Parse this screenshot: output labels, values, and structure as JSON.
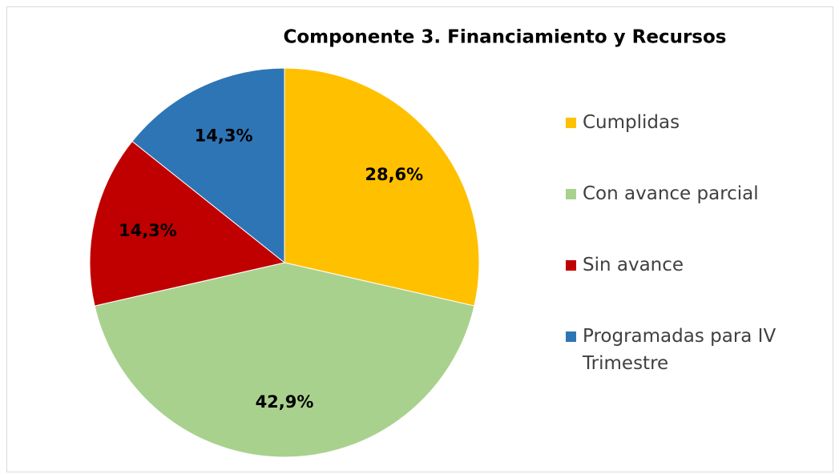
{
  "chart_data": {
    "type": "pie",
    "title": "Componente 3. Financiamiento y Recursos",
    "categories": [
      "Cumplidas",
      "Con avance parcial",
      "Sin avance",
      "Programadas para IV Trimestre"
    ],
    "values": [
      28.6,
      42.9,
      14.3,
      14.3
    ],
    "value_labels": [
      "28,6%",
      "42,9%",
      "14,3%",
      "14,3%"
    ],
    "colors": [
      "#ffc000",
      "#a9d18e",
      "#c00000",
      "#2e75b6"
    ],
    "legend": "right"
  }
}
